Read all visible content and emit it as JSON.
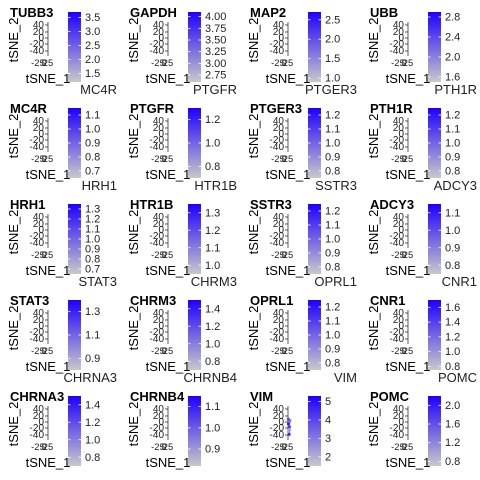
{
  "figure": {
    "xlabel": "tSNE_1",
    "ylabel": "tSNE_2",
    "y_tick_labels": [
      "40",
      "20",
      "0",
      "-20",
      "-40"
    ],
    "x_tick_labels": [
      "-25",
      "0",
      "25"
    ],
    "colors": {
      "low": "#c8c8c8",
      "high": "#1f00ff"
    }
  },
  "chart_data": [
    {
      "type": "heatmap",
      "title": "TUBB3",
      "top_label": "TUBB3",
      "legend_ticks": [
        "3.5",
        "3.0",
        "2.5",
        "2.0",
        "1.5"
      ],
      "legend_values": [
        3.5,
        3.0,
        2.5,
        2.0,
        1.5
      ],
      "color_range": [
        1.2,
        3.7
      ],
      "points": []
    },
    {
      "type": "heatmap",
      "title": "GAPDH",
      "top_label": "GAPDH",
      "legend_ticks": [
        "4.00",
        "3.75",
        "3.50",
        "3.25",
        "3.00",
        "2.75"
      ],
      "legend_values": [
        4.0,
        3.75,
        3.5,
        3.25,
        3.0,
        2.75
      ],
      "color_range": [
        2.6,
        4.1
      ],
      "points": []
    },
    {
      "type": "heatmap",
      "title": "MAP2",
      "top_label": "MAP2",
      "legend_ticks": [
        "2.5",
        "2.0",
        "1.5",
        "1.0"
      ],
      "legend_values": [
        2.5,
        2.0,
        1.5,
        1.0
      ],
      "color_range": [
        0.9,
        2.7
      ],
      "points": []
    },
    {
      "type": "heatmap",
      "title": "UBB",
      "top_label": "UBB",
      "legend_ticks": [
        "2.8",
        "2.4",
        "2.0",
        "1.6"
      ],
      "legend_values": [
        2.8,
        2.4,
        2.0,
        1.6
      ],
      "color_range": [
        1.5,
        2.9
      ],
      "points": []
    },
    {
      "type": "heatmap",
      "title": "MC4R",
      "top_label": "MC4R",
      "legend_ticks": [
        "1.1",
        "1.0",
        "0.9",
        "0.8",
        "0.7"
      ],
      "legend_values": [
        1.1,
        1.0,
        0.9,
        0.8,
        0.7
      ],
      "color_range": [
        0.65,
        1.15
      ],
      "points": []
    },
    {
      "type": "heatmap",
      "title": "PTGFR",
      "top_label": "PTGFR",
      "legend_ticks": [
        "1.2",
        "1.0",
        "0.8"
      ],
      "legend_values": [
        1.2,
        1.0,
        0.8
      ],
      "color_range": [
        0.7,
        1.3
      ],
      "points": []
    },
    {
      "type": "heatmap",
      "title": "PTGER3",
      "top_label": "PTGER3",
      "legend_ticks": [
        "1.2",
        "1.1",
        "1.0",
        "0.9",
        "0.8"
      ],
      "legend_values": [
        1.2,
        1.1,
        1.0,
        0.9,
        0.8
      ],
      "color_range": [
        0.75,
        1.25
      ],
      "points": []
    },
    {
      "type": "heatmap",
      "title": "PTH1R",
      "top_label": "PTH1R",
      "legend_ticks": [
        "1.2",
        "1.1",
        "1.0",
        "0.9",
        "0.8"
      ],
      "legend_values": [
        1.2,
        1.1,
        1.0,
        0.9,
        0.8
      ],
      "color_range": [
        0.75,
        1.25
      ],
      "points": []
    },
    {
      "type": "heatmap",
      "title": "HRH1",
      "top_label": "HRH1",
      "legend_ticks": [
        "1.3",
        "1.2",
        "1.1",
        "1.0",
        "0.9",
        "0.8",
        "0.7"
      ],
      "legend_values": [
        1.3,
        1.2,
        1.1,
        1.0,
        0.9,
        0.8,
        0.7
      ],
      "color_range": [
        0.65,
        1.35
      ],
      "points": []
    },
    {
      "type": "heatmap",
      "title": "HTR1B",
      "top_label": "HTR1B",
      "legend_ticks": [
        "1.3",
        "1.2",
        "1.1",
        "1.0"
      ],
      "legend_values": [
        1.3,
        1.2,
        1.1,
        1.0
      ],
      "color_range": [
        0.95,
        1.35
      ],
      "points": []
    },
    {
      "type": "heatmap",
      "title": "SSTR3",
      "top_label": "SSTR3",
      "legend_ticks": [
        "1.2",
        "1.1",
        "1.0",
        "0.9",
        "0.8"
      ],
      "legend_values": [
        1.2,
        1.1,
        1.0,
        0.9,
        0.8
      ],
      "color_range": [
        0.75,
        1.25
      ],
      "points": []
    },
    {
      "type": "heatmap",
      "title": "ADCY3",
      "top_label": "ADCY3",
      "legend_ticks": [
        "1.1",
        "1.0",
        "0.9",
        "0.8"
      ],
      "legend_values": [
        1.1,
        1.0,
        0.9,
        0.8
      ],
      "color_range": [
        0.75,
        1.15
      ],
      "points": []
    },
    {
      "type": "heatmap",
      "title": "STAT3",
      "top_label": "STAT3",
      "legend_ticks": [
        "1.3",
        "1.1",
        "0.9"
      ],
      "legend_values": [
        1.3,
        1.1,
        0.9
      ],
      "color_range": [
        0.8,
        1.4
      ],
      "points": []
    },
    {
      "type": "heatmap",
      "title": "CHRM3",
      "top_label": "CHRM3",
      "legend_ticks": [
        "1.4",
        "1.2",
        "1.0",
        "0.8"
      ],
      "legend_values": [
        1.4,
        1.2,
        1.0,
        0.8
      ],
      "color_range": [
        0.7,
        1.5
      ],
      "points": []
    },
    {
      "type": "heatmap",
      "title": "OPRL1",
      "top_label": "OPRL1",
      "legend_ticks": [
        "1.2",
        "1.1",
        "1.0",
        "0.9",
        "0.8"
      ],
      "legend_values": [
        1.2,
        1.1,
        1.0,
        0.9,
        0.8
      ],
      "color_range": [
        0.75,
        1.25
      ],
      "points": []
    },
    {
      "type": "heatmap",
      "title": "CNR1",
      "top_label": "CNR1",
      "legend_ticks": [
        "1.6",
        "1.4",
        "1.2",
        "1.0",
        "0.8"
      ],
      "legend_values": [
        1.6,
        1.4,
        1.2,
        1.0,
        0.8
      ],
      "color_range": [
        0.75,
        1.7
      ],
      "points": []
    },
    {
      "type": "heatmap",
      "title": "CHRNA3",
      "top_label": "CHRNA3",
      "legend_ticks": [
        "1.4",
        "1.2",
        "1.0",
        "0.8"
      ],
      "legend_values": [
        1.4,
        1.2,
        1.0,
        0.8
      ],
      "color_range": [
        0.7,
        1.5
      ],
      "points": []
    },
    {
      "type": "heatmap",
      "title": "CHRNB4",
      "top_label": "CHRNB4",
      "legend_ticks": [
        "1.1",
        "1.0",
        "0.9"
      ],
      "legend_values": [
        1.1,
        1.0,
        0.9
      ],
      "color_range": [
        0.82,
        1.15
      ],
      "points": []
    },
    {
      "type": "heatmap",
      "title": "VIM",
      "top_label": "VIM",
      "legend_ticks": [
        "5",
        "4",
        "3",
        "2"
      ],
      "legend_values": [
        5,
        4,
        3,
        2
      ],
      "color_range": [
        1.5,
        5.3
      ],
      "x_tick_labels": [
        "-25",
        "0",
        "25"
      ],
      "points": [
        {
          "x": 3,
          "y": -2,
          "v": 4.8
        },
        {
          "x": 5,
          "y": 4,
          "v": 3.6
        },
        {
          "x": 8,
          "y": -10,
          "v": 4.2
        },
        {
          "x": 4,
          "y": -22,
          "v": 2.4
        },
        {
          "x": 10,
          "y": 6,
          "v": 3.1
        },
        {
          "x": 6,
          "y": -30,
          "v": 4.5
        },
        {
          "x": 9,
          "y": -18,
          "v": 2.2
        },
        {
          "x": 2,
          "y": 10,
          "v": 3.9
        }
      ]
    },
    {
      "type": "heatmap",
      "title": "POMC",
      "top_label": "POMC",
      "legend_ticks": [
        "2.0",
        "1.6",
        "1.2",
        "0.8"
      ],
      "legend_values": [
        2.0,
        1.6,
        1.2,
        0.8
      ],
      "color_range": [
        0.7,
        2.2
      ],
      "points": []
    }
  ]
}
